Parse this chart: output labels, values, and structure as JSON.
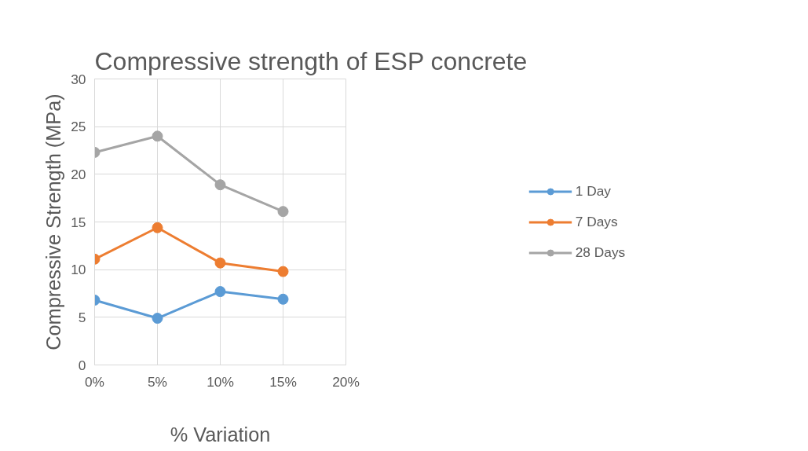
{
  "chart_data": {
    "type": "line",
    "title": "Compressive strength of ESP concrete",
    "xlabel": "% Variation",
    "ylabel": "Compressive Strength (MPa)",
    "x": [
      0,
      5,
      10,
      15
    ],
    "series": [
      {
        "name": "1 Day",
        "color": "#5b9bd5",
        "values": [
          6.8,
          4.9,
          7.7,
          6.9
        ]
      },
      {
        "name": "7 Days",
        "color": "#ed7d31",
        "values": [
          11.1,
          14.4,
          10.7,
          9.8
        ]
      },
      {
        "name": "28 Days",
        "color": "#a5a5a5",
        "values": [
          22.3,
          24.0,
          18.9,
          16.1
        ]
      }
    ],
    "xlim": [
      0,
      20
    ],
    "xticks": [
      {
        "value": 0,
        "label": "0%"
      },
      {
        "value": 5,
        "label": "5%"
      },
      {
        "value": 10,
        "label": "10%"
      },
      {
        "value": 15,
        "label": "15%"
      },
      {
        "value": 20,
        "label": "20%"
      }
    ],
    "ylim": [
      0,
      30
    ],
    "yticks": [
      0,
      5,
      10,
      15,
      20,
      25,
      30
    ],
    "grid": true,
    "legend": "right",
    "marker": "circle",
    "line_style": "solid"
  }
}
